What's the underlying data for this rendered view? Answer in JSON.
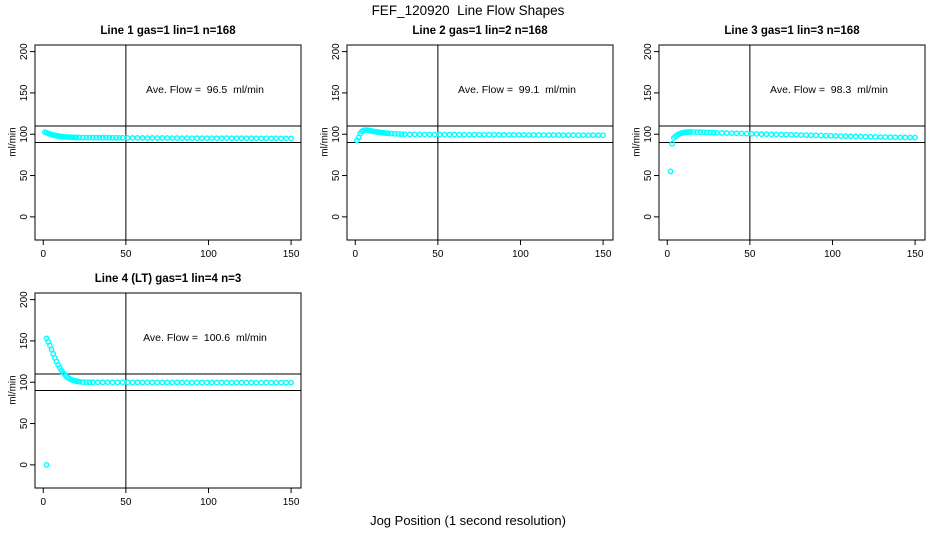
{
  "figure": {
    "title": "FEF_120920  Line Flow Shapes",
    "xlabel": "Jog Position (1 second resolution)",
    "background_color": "#ffffff",
    "axis_color": "#000000",
    "point_color": "#00ffff",
    "marker": "open-circle"
  },
  "chart_data": [
    {
      "type": "scatter",
      "title": "Line 1 gas=1 lin=1 n=168",
      "annotation": "Ave. Flow =  96.5  ml/min",
      "ave_flow_ml_min": 96.5,
      "n": 168,
      "ylabel": "ml/min",
      "xticks": [
        0,
        50,
        100,
        150
      ],
      "yticks": [
        0,
        50,
        100,
        150,
        200
      ],
      "xlim": [
        -5,
        156
      ],
      "ylim": [
        -28,
        208
      ],
      "hlines": [
        90,
        110
      ],
      "vlines": [
        50
      ],
      "points": [
        [
          1,
          102.6
        ],
        [
          2,
          101.8
        ],
        [
          3,
          101.0
        ],
        [
          4,
          100.3
        ],
        [
          5,
          99.7
        ],
        [
          6,
          99.1
        ],
        [
          7,
          98.6
        ],
        [
          8,
          98.2
        ],
        [
          9,
          97.8
        ],
        [
          10,
          97.5
        ],
        [
          11,
          97.2
        ],
        [
          12,
          97.0
        ],
        [
          13,
          96.8
        ],
        [
          14,
          96.7
        ],
        [
          15,
          96.5
        ],
        [
          16,
          96.4
        ],
        [
          17,
          96.3
        ],
        [
          18,
          96.2
        ],
        [
          19,
          96.2
        ],
        [
          20,
          96.1
        ],
        [
          22,
          96.0
        ],
        [
          24,
          96.0
        ],
        [
          26,
          95.9
        ],
        [
          28,
          95.9
        ],
        [
          30,
          95.8
        ],
        [
          32,
          95.9
        ],
        [
          34,
          95.8
        ],
        [
          36,
          95.8
        ],
        [
          38,
          95.7
        ],
        [
          40,
          95.8
        ],
        [
          42,
          95.7
        ],
        [
          44,
          95.7
        ],
        [
          46,
          95.6
        ],
        [
          48,
          95.7
        ],
        [
          51,
          95.6
        ],
        [
          54,
          95.5
        ],
        [
          57,
          95.6
        ],
        [
          60,
          95.5
        ],
        [
          63,
          95.4
        ],
        [
          66,
          95.5
        ],
        [
          69,
          95.4
        ],
        [
          72,
          95.5
        ],
        [
          75,
          95.4
        ],
        [
          78,
          95.3
        ],
        [
          81,
          95.4
        ],
        [
          84,
          95.3
        ],
        [
          87,
          95.4
        ],
        [
          90,
          95.3
        ],
        [
          93,
          95.2
        ],
        [
          96,
          95.3
        ],
        [
          99,
          95.2
        ],
        [
          102,
          95.3
        ],
        [
          105,
          95.2
        ],
        [
          108,
          95.2
        ],
        [
          111,
          95.3
        ],
        [
          114,
          95.2
        ],
        [
          117,
          95.1
        ],
        [
          120,
          95.2
        ],
        [
          123,
          95.1
        ],
        [
          126,
          95.2
        ],
        [
          129,
          95.1
        ],
        [
          132,
          95.0
        ],
        [
          135,
          95.1
        ],
        [
          138,
          95.0
        ],
        [
          141,
          95.1
        ],
        [
          144,
          95.0
        ],
        [
          147,
          95.0
        ],
        [
          150,
          94.9
        ]
      ],
      "outliers": []
    },
    {
      "type": "scatter",
      "title": "Line 2 gas=1 lin=2 n=168",
      "annotation": "Ave. Flow =  99.1  ml/min",
      "ave_flow_ml_min": 99.1,
      "n": 168,
      "ylabel": "ml/min",
      "xticks": [
        0,
        50,
        100,
        150
      ],
      "yticks": [
        0,
        50,
        100,
        150,
        200
      ],
      "xlim": [
        -5,
        156
      ],
      "ylim": [
        -28,
        208
      ],
      "hlines": [
        90,
        110
      ],
      "vlines": [
        50
      ],
      "points": [
        [
          2,
          96.0
        ],
        [
          3,
          101.0
        ],
        [
          4,
          103.5
        ],
        [
          5,
          104.5
        ],
        [
          6,
          105.0
        ],
        [
          7,
          105.0
        ],
        [
          8,
          104.7
        ],
        [
          9,
          104.3
        ],
        [
          10,
          103.9
        ],
        [
          11,
          103.5
        ],
        [
          12,
          103.1
        ],
        [
          13,
          102.8
        ],
        [
          14,
          102.5
        ],
        [
          15,
          102.2
        ],
        [
          16,
          101.9
        ],
        [
          17,
          101.7
        ],
        [
          18,
          101.5
        ],
        [
          19,
          101.3
        ],
        [
          20,
          101.1
        ],
        [
          22,
          100.8
        ],
        [
          24,
          100.5
        ],
        [
          26,
          100.3
        ],
        [
          28,
          100.1
        ],
        [
          30,
          100.0
        ],
        [
          33,
          99.9
        ],
        [
          36,
          99.8
        ],
        [
          39,
          99.8
        ],
        [
          42,
          99.7
        ],
        [
          45,
          99.7
        ],
        [
          48,
          99.6
        ],
        [
          51,
          99.7
        ],
        [
          54,
          99.6
        ],
        [
          57,
          99.5
        ],
        [
          60,
          99.6
        ],
        [
          63,
          99.5
        ],
        [
          66,
          99.5
        ],
        [
          69,
          99.4
        ],
        [
          72,
          99.5
        ],
        [
          75,
          99.4
        ],
        [
          78,
          99.4
        ],
        [
          81,
          99.3
        ],
        [
          84,
          99.4
        ],
        [
          87,
          99.3
        ],
        [
          90,
          99.3
        ],
        [
          93,
          99.2
        ],
        [
          96,
          99.3
        ],
        [
          99,
          99.2
        ],
        [
          102,
          99.2
        ],
        [
          105,
          99.1
        ],
        [
          108,
          99.2
        ],
        [
          111,
          99.1
        ],
        [
          114,
          99.1
        ],
        [
          117,
          99.0
        ],
        [
          120,
          99.1
        ],
        [
          123,
          99.0
        ],
        [
          126,
          99.0
        ],
        [
          129,
          98.9
        ],
        [
          132,
          99.0
        ],
        [
          135,
          98.9
        ],
        [
          138,
          98.9
        ],
        [
          141,
          98.8
        ],
        [
          144,
          98.9
        ],
        [
          147,
          98.8
        ],
        [
          150,
          98.8
        ]
      ],
      "outliers": [
        [
          1,
          92.5
        ]
      ]
    },
    {
      "type": "scatter",
      "title": "Line 3 gas=1 lin=3 n=168",
      "annotation": "Ave. Flow =  98.3  ml/min",
      "ave_flow_ml_min": 98.3,
      "n": 168,
      "ylabel": "ml/min",
      "xticks": [
        0,
        50,
        100,
        150
      ],
      "yticks": [
        0,
        50,
        100,
        150,
        200
      ],
      "xlim": [
        -5,
        156
      ],
      "ylim": [
        -28,
        208
      ],
      "hlines": [
        90,
        110
      ],
      "vlines": [
        50
      ],
      "points": [
        [
          4,
          95.5
        ],
        [
          5,
          97.5
        ],
        [
          6,
          99.0
        ],
        [
          7,
          100.2
        ],
        [
          8,
          101.0
        ],
        [
          9,
          101.6
        ],
        [
          10,
          102.0
        ],
        [
          11,
          102.3
        ],
        [
          12,
          102.5
        ],
        [
          13,
          102.6
        ],
        [
          14,
          102.7
        ],
        [
          16,
          102.7
        ],
        [
          18,
          102.6
        ],
        [
          20,
          102.5
        ],
        [
          22,
          102.4
        ],
        [
          24,
          102.2
        ],
        [
          26,
          102.1
        ],
        [
          28,
          101.9
        ],
        [
          30,
          101.8
        ],
        [
          33,
          101.6
        ],
        [
          36,
          101.4
        ],
        [
          39,
          101.2
        ],
        [
          42,
          101.1
        ],
        [
          45,
          100.9
        ],
        [
          48,
          100.7
        ],
        [
          51,
          100.6
        ],
        [
          54,
          100.4
        ],
        [
          57,
          100.2
        ],
        [
          60,
          100.1
        ],
        [
          63,
          99.9
        ],
        [
          66,
          99.8
        ],
        [
          69,
          99.6
        ],
        [
          72,
          99.5
        ],
        [
          75,
          99.3
        ],
        [
          78,
          99.2
        ],
        [
          81,
          99.0
        ],
        [
          84,
          98.9
        ],
        [
          87,
          98.7
        ],
        [
          90,
          98.6
        ],
        [
          93,
          98.4
        ],
        [
          96,
          98.3
        ],
        [
          99,
          98.1
        ],
        [
          102,
          98.0
        ],
        [
          105,
          97.8
        ],
        [
          108,
          97.7
        ],
        [
          111,
          97.5
        ],
        [
          114,
          97.4
        ],
        [
          117,
          97.2
        ],
        [
          120,
          97.1
        ],
        [
          123,
          96.9
        ],
        [
          126,
          96.8
        ],
        [
          129,
          96.6
        ],
        [
          132,
          96.5
        ],
        [
          135,
          96.4
        ],
        [
          138,
          96.3
        ],
        [
          141,
          96.2
        ],
        [
          144,
          96.1
        ],
        [
          147,
          96.0
        ],
        [
          150,
          96.0
        ]
      ],
      "outliers": [
        [
          2,
          55
        ],
        [
          3,
          88.5
        ]
      ]
    },
    {
      "type": "scatter",
      "title": "Line 4 (LT) gas=1 lin=4 n=3",
      "annotation": "Ave. Flow =  100.6  ml/min",
      "ave_flow_ml_min": 100.6,
      "n": 3,
      "ylabel": "ml/min",
      "xticks": [
        0,
        50,
        100,
        150
      ],
      "yticks": [
        0,
        50,
        100,
        150,
        200
      ],
      "xlim": [
        -5,
        156
      ],
      "ylim": [
        -28,
        208
      ],
      "hlines": [
        90,
        110
      ],
      "vlines": [
        50
      ],
      "points": [
        [
          2,
          153
        ],
        [
          3,
          149
        ],
        [
          4,
          144.5
        ],
        [
          5,
          139.5
        ],
        [
          6,
          134.5
        ],
        [
          7,
          129.5
        ],
        [
          8,
          125
        ],
        [
          9,
          121
        ],
        [
          10,
          117.5
        ],
        [
          11,
          114.2
        ],
        [
          12,
          111.5
        ],
        [
          13,
          109.2
        ],
        [
          14,
          107.2
        ],
        [
          15,
          105.5
        ],
        [
          16,
          104.2
        ],
        [
          17,
          103.2
        ],
        [
          18,
          102.4
        ],
        [
          19,
          101.8
        ],
        [
          20,
          101.3
        ],
        [
          21,
          100.9
        ],
        [
          22,
          100.6
        ],
        [
          24,
          100.2
        ],
        [
          26,
          100.0
        ],
        [
          28,
          99.9
        ],
        [
          30,
          99.9
        ],
        [
          33,
          100.0
        ],
        [
          36,
          99.9
        ],
        [
          39,
          100.0
        ],
        [
          42,
          99.9
        ],
        [
          45,
          99.9
        ],
        [
          48,
          100.0
        ],
        [
          51,
          99.9
        ],
        [
          54,
          99.8
        ],
        [
          57,
          99.9
        ],
        [
          60,
          99.8
        ],
        [
          63,
          99.9
        ],
        [
          66,
          99.8
        ],
        [
          69,
          99.8
        ],
        [
          72,
          99.7
        ],
        [
          75,
          99.8
        ],
        [
          78,
          99.7
        ],
        [
          81,
          99.8
        ],
        [
          84,
          99.7
        ],
        [
          87,
          99.7
        ],
        [
          90,
          99.6
        ],
        [
          93,
          99.7
        ],
        [
          96,
          99.6
        ],
        [
          99,
          99.7
        ],
        [
          102,
          99.6
        ],
        [
          105,
          99.6
        ],
        [
          108,
          99.7
        ],
        [
          111,
          99.6
        ],
        [
          114,
          99.6
        ],
        [
          117,
          99.5
        ],
        [
          120,
          99.6
        ],
        [
          123,
          99.5
        ],
        [
          126,
          99.6
        ],
        [
          129,
          99.5
        ],
        [
          132,
          99.5
        ],
        [
          135,
          99.6
        ],
        [
          138,
          99.5
        ],
        [
          141,
          99.5
        ],
        [
          144,
          99.4
        ],
        [
          147,
          99.5
        ],
        [
          150,
          99.5
        ]
      ],
      "outliers": [
        [
          2,
          0
        ]
      ]
    }
  ]
}
